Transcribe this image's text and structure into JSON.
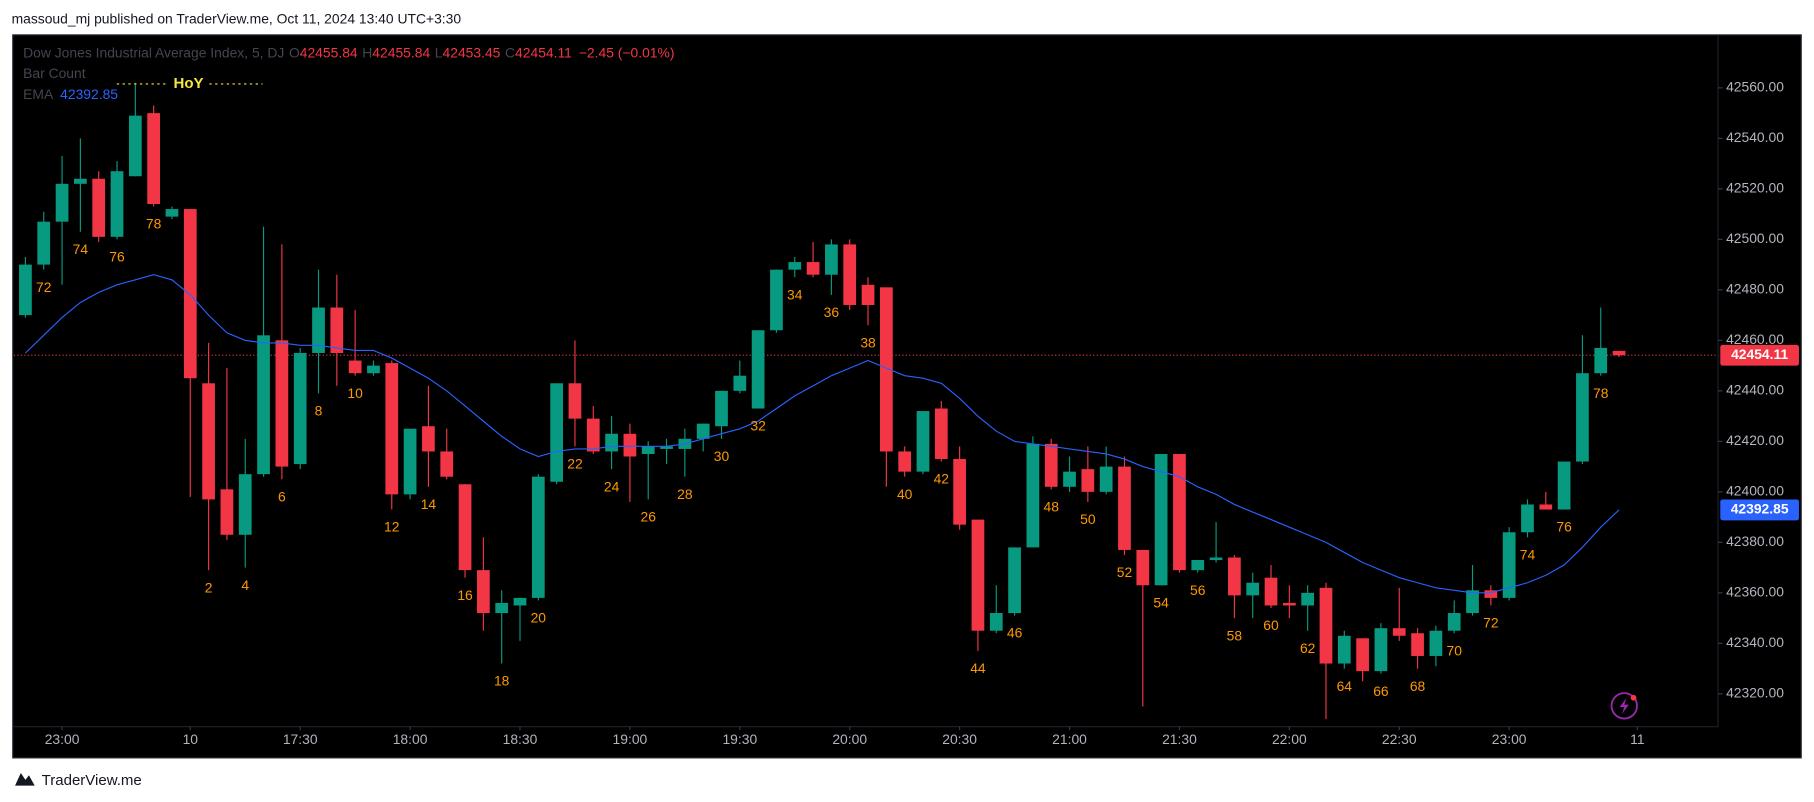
{
  "header": "massoud_mj published on TraderView.me, Oct 11, 2024 13:40 UTC+3:30",
  "footer": "TraderView.me",
  "chart_data": {
    "type": "candlestick",
    "legend_labels": {
      "open": "O",
      "high": "H",
      "low": "L",
      "close": "C"
    },
    "change_label": "−2.45 (−0.01%)",
    "indicator_label": "Bar Count",
    "annotation": "HoY",
    "ylim": [
      42307,
      42581
    ],
    "yticks": [
      {
        "value": 42320,
        "label": "42320.00"
      },
      {
        "value": 42340,
        "label": "42340.00"
      },
      {
        "value": 42360,
        "label": "42360.00"
      },
      {
        "value": 42380,
        "label": "42380.00"
      },
      {
        "value": 42400,
        "label": "42400.00"
      },
      {
        "value": 42420,
        "label": "42420.00"
      },
      {
        "value": 42440,
        "label": "42440.00"
      },
      {
        "value": 42460,
        "label": "42460.00"
      },
      {
        "value": 42480,
        "label": "42480.00"
      },
      {
        "value": 42500,
        "label": "42500.00"
      },
      {
        "value": 42520,
        "label": "42520.00"
      },
      {
        "value": 42540,
        "label": "42540.00"
      },
      {
        "value": 42560,
        "label": "42560.00"
      }
    ],
    "xlim": [
      -0.63,
      92.4
    ],
    "xticks": [
      {
        "value": 2,
        "label": "23:00"
      },
      {
        "value": 9,
        "label": "10"
      },
      {
        "value": 15,
        "label": "17:30"
      },
      {
        "value": 21,
        "label": "18:00"
      },
      {
        "value": 27,
        "label": "18:30"
      },
      {
        "value": 33,
        "label": "19:00"
      },
      {
        "value": 39,
        "label": "19:30"
      },
      {
        "value": 45,
        "label": "20:00"
      },
      {
        "value": 51,
        "label": "20:30"
      },
      {
        "value": 57,
        "label": "21:00"
      },
      {
        "value": 63,
        "label": "21:30"
      },
      {
        "value": 69,
        "label": "22:00"
      },
      {
        "value": 75,
        "label": "22:30"
      },
      {
        "value": 81,
        "label": "23:00"
      },
      {
        "value": 88,
        "label": "11"
      }
    ],
    "grid": false,
    "series": [
      {
        "name": "Dow Jones Industrial Average Index, 5, DJ",
        "up_color": "#089981",
        "down_color": "#f23645",
        "open": [
          42470,
          42490,
          42507,
          42522,
          42524,
          42501,
          42525,
          42550,
          42509,
          42512,
          42443,
          42401,
          42383,
          42407,
          42460,
          42411,
          42455,
          42473,
          42452,
          42447,
          42451,
          42399,
          42426,
          42416,
          42403,
          42369,
          42352,
          42355,
          42358,
          42404,
          42443,
          42429,
          42416,
          42423,
          42415,
          42417,
          42417,
          42421,
          42426,
          42440,
          42433,
          42464,
          42488,
          42491,
          42486,
          42498,
          42482,
          42481,
          42416,
          42408,
          42433,
          42413,
          42389,
          42345,
          42352,
          42378,
          42419,
          42402,
          42409,
          42400,
          42410,
          42377,
          42363,
          42415,
          42369,
          42373,
          42374,
          42359,
          42366,
          42356,
          42355,
          42362,
          42332,
          42342,
          42329,
          42346,
          42344,
          42335,
          42345,
          42352,
          42361,
          42358,
          42384,
          42395,
          42393,
          42412,
          42447,
          42455.84
        ],
        "high": [
          42493,
          42511,
          42533,
          42540,
          42527,
          42531,
          42562,
          42553,
          42513,
          42512,
          42459,
          42449,
          42421,
          42505,
          42498,
          42457,
          42488,
          42486,
          42472,
          42452,
          42452,
          42425,
          42442,
          42425,
          42403,
          42382,
          42361,
          42358,
          42407,
          42443,
          42460,
          42434,
          42430,
          42427,
          42420,
          42421,
          42425,
          42427,
          42440,
          42452,
          42464,
          42488,
          42493,
          42499,
          42500,
          42500,
          42485,
          42481,
          42418,
          42432,
          42436,
          42418,
          42389,
          42363,
          42378,
          42422,
          42421,
          42414,
          42418,
          42418,
          42414,
          42377,
          42415,
          42415,
          42373,
          42388,
          42375,
          42368,
          42371,
          42363,
          42363,
          42364,
          42345,
          42342,
          42348,
          42362,
          42346,
          42347,
          42357,
          42371,
          42363,
          42386,
          42397,
          42400,
          42412,
          42462,
          42473,
          42455.84
        ],
        "low": [
          42469,
          42488,
          42482,
          42503,
          42499,
          42500,
          42525,
          42513,
          42508,
          42398,
          42369,
          42381,
          42370,
          42406,
          42405,
          42409,
          42439,
          42442,
          42446,
          42446,
          42393,
          42397,
          42402,
          42405,
          42366,
          42345,
          42332,
          42341,
          42357,
          42403,
          42418,
          42415,
          42409,
          42396,
          42397,
          42411,
          42406,
          42416,
          42421,
          42439,
          42433,
          42463,
          42485,
          42485,
          42478,
          42472,
          42466,
          42402,
          42406,
          42407,
          42412,
          42385,
          42337,
          42344,
          42351,
          42378,
          42401,
          42400,
          42396,
          42399,
          42375,
          42315,
          42363,
          42368,
          42368,
          42372,
          42350,
          42350,
          42354,
          42350,
          42345,
          42310,
          42330,
          42325,
          42328,
          42341,
          42330,
          42331,
          42344,
          42351,
          42355,
          42357,
          42382,
          42393,
          42393,
          42411,
          42446,
          42453.45
        ],
        "close": [
          42490,
          42507,
          42522,
          42524,
          42501,
          42527,
          42549,
          42514,
          42512,
          42445,
          42397,
          42383,
          42407,
          42462,
          42410,
          42455,
          42473,
          42455,
          42447,
          42450,
          42399,
          42425,
          42416,
          42406,
          42369,
          42352,
          42356,
          42358,
          42406,
          42443,
          42429,
          42416,
          42423,
          42414,
          42418,
          42418,
          42421,
          42427,
          42440,
          42446,
          42464,
          42488,
          42491,
          42486,
          42498,
          42474,
          42474,
          42416,
          42408,
          42432,
          42413,
          42387,
          42345,
          42352,
          42378,
          42419,
          42402,
          42408,
          42400,
          42410,
          42377,
          42363,
          42415,
          42369,
          42373,
          42374,
          42359,
          42364,
          42355,
          42355,
          42360,
          42332,
          42343,
          42329,
          42346,
          42343,
          42335,
          42345,
          42352,
          42361,
          42358,
          42384,
          42395,
          42393,
          42412,
          42447,
          42457,
          42454.11
        ]
      },
      {
        "name": "EMA",
        "color": "#2962ff",
        "values": [
          42455,
          42462,
          42469,
          42475,
          42479,
          42482,
          42484,
          42486,
          42484,
          42478,
          42470,
          42463,
          42460,
          42459,
          42459,
          42458,
          42458,
          42457,
          42456,
          42456,
          42453,
          42449,
          42445,
          42440,
          42434,
          42428,
          42422,
          42417,
          42414,
          42416,
          42417,
          42417,
          42418,
          42418,
          42418,
          42418,
          42419,
          42421,
          42423,
          42425,
          42428,
          42433,
          42438,
          42442,
          42446,
          42449,
          42452,
          42449,
          42446,
          42445,
          42443,
          42437,
          42430,
          42424,
          42420,
          42419,
          42418,
          42417,
          42416,
          42415,
          42413,
          42410,
          42408,
          42406,
          42402,
          42399,
          42395,
          42392,
          42389,
          42386,
          42383,
          42380,
          42376,
          42372,
          42369,
          42366,
          42364,
          42362,
          42361,
          42360,
          42360,
          42362,
          42364,
          42367,
          42371,
          42378,
          42386,
          42392.85
        ]
      }
    ],
    "bar_counts": [
      null,
      72,
      null,
      74,
      null,
      76,
      null,
      78,
      null,
      null,
      2,
      null,
      4,
      null,
      6,
      null,
      8,
      null,
      10,
      null,
      12,
      null,
      14,
      null,
      16,
      null,
      18,
      null,
      20,
      null,
      22,
      null,
      24,
      null,
      26,
      null,
      28,
      null,
      30,
      null,
      32,
      null,
      34,
      null,
      36,
      null,
      38,
      null,
      40,
      null,
      42,
      null,
      44,
      null,
      46,
      null,
      48,
      null,
      50,
      null,
      52,
      null,
      54,
      null,
      56,
      null,
      58,
      null,
      60,
      null,
      62,
      null,
      64,
      null,
      66,
      null,
      68,
      null,
      70,
      null,
      72,
      null,
      74,
      null,
      76,
      null,
      78,
      null
    ]
  }
}
